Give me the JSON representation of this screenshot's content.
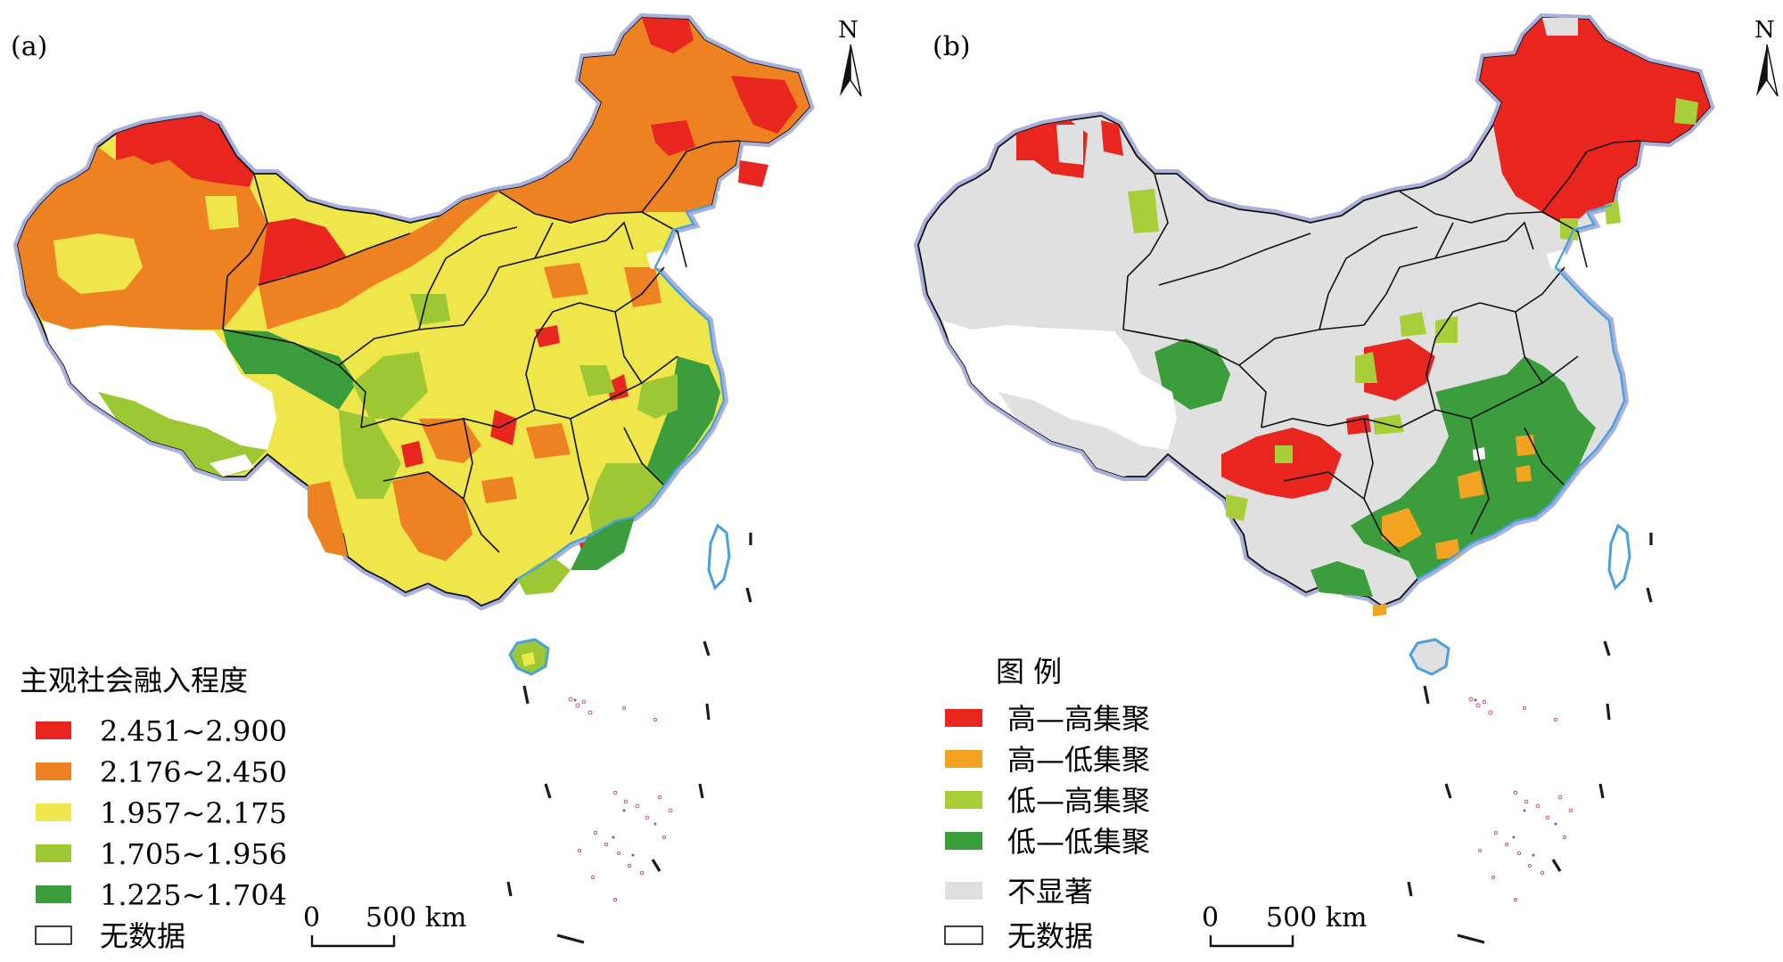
{
  "panels": [
    {
      "id": "a",
      "label": "(a)",
      "north": "N",
      "scale": {
        "zero": "0",
        "distance": "500 km"
      },
      "legend": {
        "title": "主观社会融入程度",
        "items": [
          {
            "label": "2.451~2.900",
            "color": "#e8251f"
          },
          {
            "label": "2.176~2.450",
            "color": "#ee8122"
          },
          {
            "label": "1.957~2.175",
            "color": "#eee64a"
          },
          {
            "label": "1.705~1.956",
            "color": "#9dc833"
          },
          {
            "label": "1.225~1.704",
            "color": "#3b9d3b"
          },
          {
            "label": "无数据",
            "color": "#ffffff"
          }
        ]
      }
    },
    {
      "id": "b",
      "label": "(b)",
      "north": "N",
      "scale": {
        "zero": "0",
        "distance": "500 km"
      },
      "legend": {
        "title": "图  例",
        "items": [
          {
            "label": "高—高集聚",
            "color": "#e8251f"
          },
          {
            "label": "高—低集聚",
            "color": "#f3a322"
          },
          {
            "label": "低—高集聚",
            "color": "#a8cf3a"
          },
          {
            "label": "低—低集聚",
            "color": "#3b9d3b"
          },
          {
            "label": "不显著",
            "color": "#e0e0e0"
          },
          {
            "label": "无数据",
            "color": "#ffffff"
          }
        ]
      }
    }
  ],
  "colors": {
    "border_glow": "#aab0dc",
    "coast": "#4aa0e0",
    "boundary": "#111111"
  }
}
